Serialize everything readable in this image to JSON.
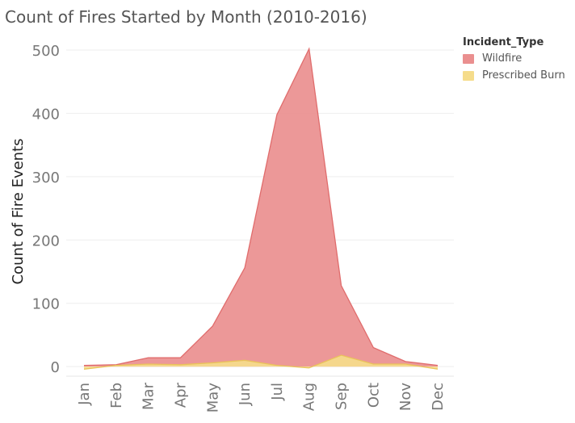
{
  "chart_data": {
    "type": "area",
    "title": "Count of Fires Started by Month (2010-2016)",
    "xlabel": "",
    "ylabel": "Count of Fire Events",
    "categories": [
      "Jan",
      "Feb",
      "Mar",
      "Apr",
      "May",
      "Jun",
      "Jul",
      "Aug",
      "Sep",
      "Oct",
      "Nov",
      "Dec"
    ],
    "ylim": [
      -10,
      500
    ],
    "yticks": [
      0,
      100,
      200,
      300,
      400,
      500
    ],
    "grid": true,
    "legend_title": "Incident_Type",
    "legend_position": "top-right",
    "series": [
      {
        "name": "Wildfire",
        "color": "#ea8f8f",
        "values": [
          2,
          3,
          14,
          14,
          64,
          156,
          398,
          502,
          128,
          30,
          8,
          2
        ]
      },
      {
        "name": "Prescribed Burn",
        "color": "#f5dc8b",
        "values": [
          -4,
          2,
          4,
          3,
          6,
          10,
          2,
          -2,
          18,
          4,
          4,
          -4
        ]
      }
    ]
  }
}
